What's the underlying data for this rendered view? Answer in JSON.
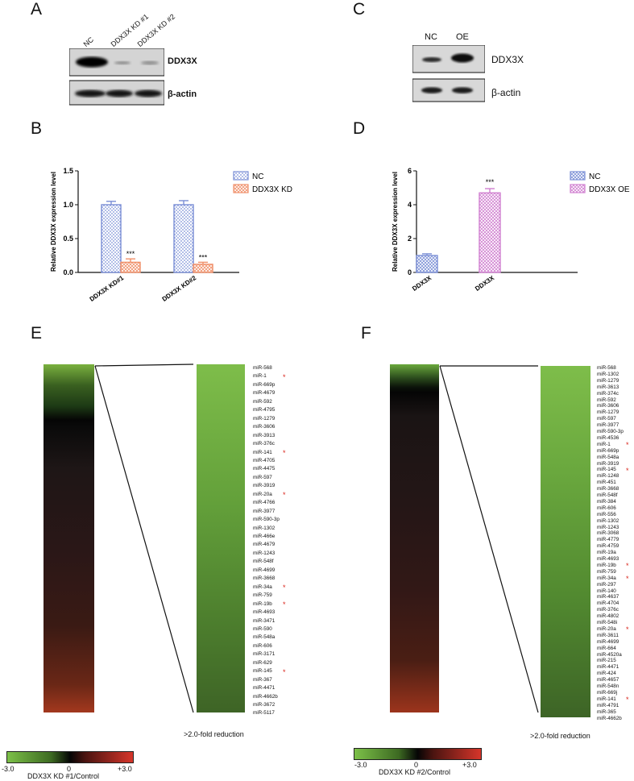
{
  "panels": {
    "A": "A",
    "B": "B",
    "C": "C",
    "D": "D",
    "E": "E",
    "F": "F"
  },
  "blot_a": {
    "lanes": [
      "NC",
      "DDX3X KD #1",
      "DDX3X KD #2"
    ],
    "label_top": "DDX3X",
    "label_bottom": "β-actin"
  },
  "blot_c": {
    "lanes": [
      "NC",
      "OE"
    ],
    "label_top": "DDX3X",
    "label_bottom": "β-actin"
  },
  "chart_data": [
    {
      "type": "bar",
      "panel": "B",
      "ylabel": "Relative DDX3X expression level",
      "ylim": [
        0,
        1.5
      ],
      "yticks": [
        "0.0",
        "0.5",
        "1.0",
        "1.5"
      ],
      "categories": [
        "DDX3X KD#1",
        "DDX3X KD#2"
      ],
      "series": [
        {
          "name": "NC",
          "values": [
            1.0,
            1.0
          ],
          "errors": [
            0.05,
            0.06
          ],
          "color": "#7b8fd6"
        },
        {
          "name": "DDX3X  KD",
          "values": [
            0.15,
            0.12
          ],
          "errors": [
            0.05,
            0.03
          ],
          "color": "#f0906a"
        }
      ],
      "annotations": [
        "***",
        "***"
      ]
    },
    {
      "type": "bar",
      "panel": "D",
      "ylabel": "Relative DDX3X expression level",
      "ylim": [
        0,
        6
      ],
      "yticks": [
        "0",
        "2",
        "4",
        "6"
      ],
      "categories": [
        "DDX3X",
        "DDX3X"
      ],
      "series": [
        {
          "name": "NC",
          "values": [
            1.0,
            null
          ],
          "errors": [
            0.1,
            null
          ],
          "color": "#7b8fd6"
        },
        {
          "name": "DDX3X  OE",
          "values": [
            null,
            4.7
          ],
          "errors": [
            null,
            0.25
          ],
          "color": "#d07fd0"
        }
      ],
      "annotations": [
        "***"
      ]
    },
    {
      "type": "heatmap",
      "panel": "E",
      "scale_min": "-3.0",
      "scale_mid": "0",
      "scale_max": "+3.0",
      "scale_label": "DDX3X KD #1/Control",
      "caption": ">2.0-fold reduction",
      "mirnas": [
        "miR-568",
        "miR-1",
        "miR-669p",
        "miR-4679",
        "miR-592",
        "miR-4795",
        "miR-1279",
        "miR-3606",
        "miR-3913",
        "miR-376c",
        "miR-141",
        "miR-4705",
        "miR-4475",
        "miR-597",
        "miR-3919",
        "miR-20a",
        "miR-4766",
        "miR-3977",
        "miR-590-3p",
        "miR-1302",
        "miR-466e",
        "miR-4679",
        "miR-1243",
        "miR-548f",
        "miR-4699",
        "miR-3668",
        "miR-34a",
        "miR-759",
        "miR-19b",
        "miR-4693",
        "miR-3471",
        "miR-590",
        "miR-548a",
        "miR-606",
        "miR-3171",
        "miR-629",
        "miR-145",
        "miR-367",
        "miR-4471",
        "miR-4662b",
        "miR-3672",
        "miR-5117"
      ],
      "starred": [
        "miR-1",
        "miR-141",
        "miR-20a",
        "miR-34a",
        "miR-19b",
        "miR-145"
      ]
    },
    {
      "type": "heatmap",
      "panel": "F",
      "scale_min": "-3.0",
      "scale_mid": "0",
      "scale_max": "+3.0",
      "scale_label": "DDX3X KD #2/Control",
      "caption": ">2.0-fold reduction",
      "mirnas": [
        "miR-568",
        "miR-1302",
        "miR-1279",
        "miR-3613",
        "miR-374c",
        "miR-592",
        "miR-3606",
        "miR-1279",
        "miR-597",
        "miR-3977",
        "miR-590-3p",
        "miR-4536",
        "miR-1",
        "miR-669p",
        "miR-548a",
        "miR-3919",
        "miR-145",
        "miR-1248",
        "miR-451",
        "miR-3668",
        "miR-548f",
        "miR-384",
        "miR-606",
        "miR-556",
        "miR-1302",
        "miR-1243",
        "miR-3068",
        "miR-4779",
        "miR-4759",
        "miR-19a",
        "miR-4693",
        "miR-19b",
        "miR-759",
        "miR-34a",
        "miR-297",
        "miR-140",
        "miR-4637",
        "miR-4704",
        "miR-376c",
        "miR-4802",
        "miR-548i",
        "miR-20a",
        "miR-3611",
        "miR-4699",
        "miR-664",
        "miR-4520a",
        "miR-215",
        "miR-4471",
        "miR-424",
        "miR-4657",
        "miR-548n",
        "miR-669j",
        "miR-141",
        "miR-4791",
        "miR-365",
        "miR-4662b"
      ],
      "starred": [
        "miR-1",
        "miR-145",
        "miR-19b",
        "miR-34a",
        "miR-20a",
        "miR-141"
      ]
    }
  ]
}
